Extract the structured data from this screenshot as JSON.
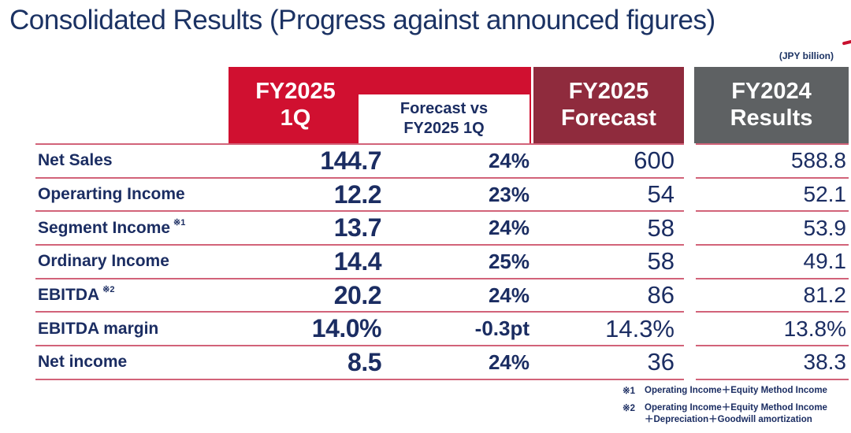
{
  "title": "Consolidated Results (Progress against announced figures)",
  "unit_note": "(JPY billion)",
  "colors": {
    "accent_red": "#d01030",
    "maroon": "#8f2b3d",
    "gray": "#5e6163",
    "navy_text": "#1b2d62",
    "separator_pink": "#d26379"
  },
  "table": {
    "columns": {
      "q1": {
        "line1": "FY2025",
        "line2": "1Q"
      },
      "vs": {
        "line1": "Forecast vs",
        "line2": "FY2025 1Q"
      },
      "forecast": {
        "line1": "FY2025",
        "line2": "Forecast"
      },
      "fy2024": {
        "line1": "FY2024",
        "line2": "Results"
      }
    },
    "rows": [
      {
        "label": "Net Sales",
        "sup": "",
        "q1": "144.7",
        "vs": "24%",
        "forecast": "600",
        "fy2024": "588.8"
      },
      {
        "label": "Operarting Income",
        "sup": "",
        "q1": "12.2",
        "vs": "23%",
        "forecast": "54",
        "fy2024": "52.1"
      },
      {
        "label": "Segment Income",
        "sup": "※1",
        "q1": "13.7",
        "vs": "24%",
        "forecast": "58",
        "fy2024": "53.9"
      },
      {
        "label": "Ordinary Income",
        "sup": "",
        "q1": "14.4",
        "vs": "25%",
        "forecast": "58",
        "fy2024": "49.1"
      },
      {
        "label": "EBITDA",
        "sup": "※2",
        "q1": "20.2",
        "vs": "24%",
        "forecast": "86",
        "fy2024": "81.2"
      },
      {
        "label": "EBITDA margin",
        "sup": "",
        "q1": "14.0%",
        "vs": "-0.3pt",
        "forecast": "14.3%",
        "fy2024": "13.8%"
      },
      {
        "label": "Net income",
        "sup": "",
        "q1": "8.5",
        "vs": "24%",
        "forecast": "36",
        "fy2024": "38.3"
      }
    ]
  },
  "footnotes": [
    {
      "marker": "※1",
      "lines": [
        "Operating Income＋Equity Method Income",
        ""
      ]
    },
    {
      "marker": "※2",
      "lines": [
        "Operating Income＋Equity Method Income",
        "＋Depreciation＋Goodwill amortization"
      ]
    }
  ]
}
